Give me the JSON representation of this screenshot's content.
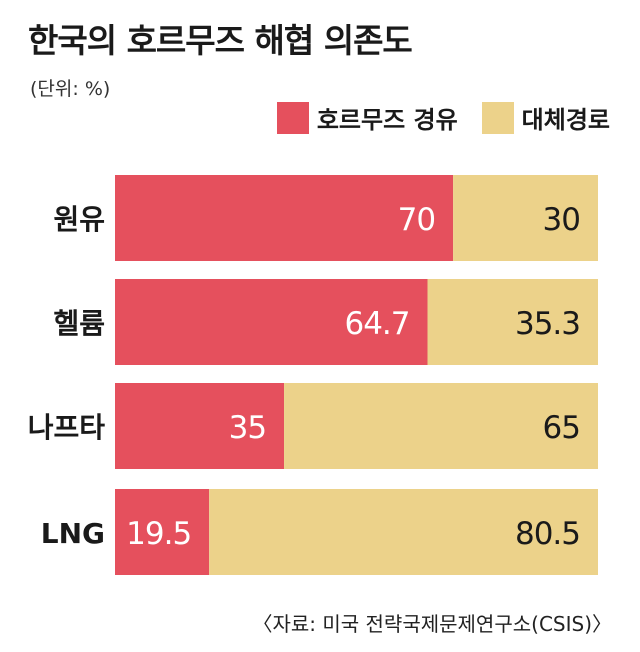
{
  "title": "한국의 호르무즈 해협 의존도",
  "unit": "(단위: %)",
  "source": "〈자료: 미국 전략국제문제연구소(CSIS)〉",
  "colors": {
    "hormuz": "#e5505d",
    "alternative": "#ecd28a"
  },
  "chart_data": {
    "type": "bar",
    "stacked": true,
    "orientation": "horizontal",
    "categories": [
      "원유",
      "헬륨",
      "나프타",
      "LNG"
    ],
    "series": [
      {
        "name": "호르무즈 경유",
        "values": [
          70,
          64.7,
          35,
          19.5
        ]
      },
      {
        "name": "대체경로",
        "values": [
          30,
          35.3,
          65,
          80.5
        ]
      }
    ],
    "xlim": [
      0,
      100
    ],
    "legend": "top-right",
    "grid": false
  }
}
